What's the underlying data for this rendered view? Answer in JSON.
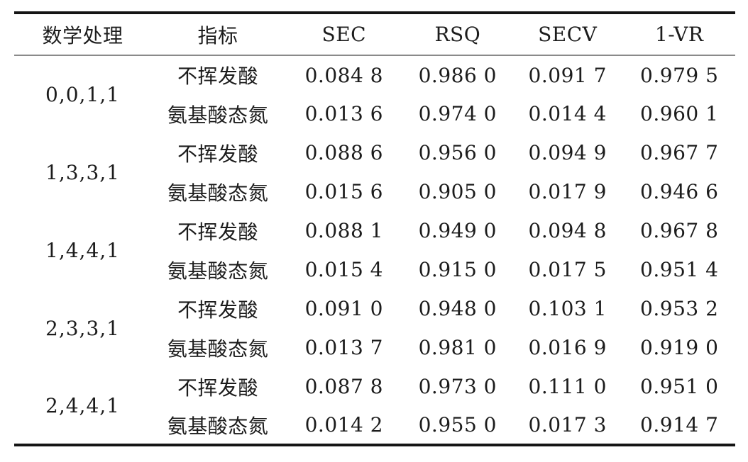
{
  "page": {
    "background": "#ffffff",
    "text_color": "#1c1c1c",
    "heavy_rule_color": "#141414",
    "light_rule_color": "#8a8a8a"
  },
  "table": {
    "headers": [
      "数学处理",
      "指标",
      "SEC",
      "RSQ",
      "SECV",
      "1-VR"
    ],
    "groups": [
      {
        "treatment": "0,0,1,1",
        "rows": [
          {
            "indicator": "不挥发酸",
            "sec": "0.084 8",
            "rsq": "0.986 0",
            "secv": "0.091 7",
            "vr": "0.979 5"
          },
          {
            "indicator": "氨基酸态氮",
            "sec": "0.013 6",
            "rsq": "0.974 0",
            "secv": "0.014 4",
            "vr": "0.960 1"
          }
        ]
      },
      {
        "treatment": "1,3,3,1",
        "rows": [
          {
            "indicator": "不挥发酸",
            "sec": "0.088 6",
            "rsq": "0.956 0",
            "secv": "0.094 9",
            "vr": "0.967 7"
          },
          {
            "indicator": "氨基酸态氮",
            "sec": "0.015 6",
            "rsq": "0.905 0",
            "secv": "0.017 9",
            "vr": "0.946 6"
          }
        ]
      },
      {
        "treatment": "1,4,4,1",
        "rows": [
          {
            "indicator": "不挥发酸",
            "sec": "0.088 1",
            "rsq": "0.949 0",
            "secv": "0.094 8",
            "vr": "0.967 8"
          },
          {
            "indicator": "氨基酸态氮",
            "sec": "0.015 4",
            "rsq": "0.915 0",
            "secv": "0.017 5",
            "vr": "0.951 4"
          }
        ]
      },
      {
        "treatment": "2,3,3,1",
        "rows": [
          {
            "indicator": "不挥发酸",
            "sec": "0.091 0",
            "rsq": "0.948 0",
            "secv": "0.103 1",
            "vr": "0.953 2"
          },
          {
            "indicator": "氨基酸态氮",
            "sec": "0.013 7",
            "rsq": "0.981 0",
            "secv": "0.016 9",
            "vr": "0.919 0"
          }
        ]
      },
      {
        "treatment": "2,4,4,1",
        "rows": [
          {
            "indicator": "不挥发酸",
            "sec": "0.087 8",
            "rsq": "0.973 0",
            "secv": "0.111 0",
            "vr": "0.951 0"
          },
          {
            "indicator": "氨基酸态氮",
            "sec": "0.014 2",
            "rsq": "0.955 0",
            "secv": "0.017 3",
            "vr": "0.914 7"
          }
        ]
      }
    ]
  },
  "chart_data": {
    "type": "table",
    "columns": [
      "数学处理",
      "指标",
      "SEC",
      "RSQ",
      "SECV",
      "1-VR"
    ],
    "rows": [
      [
        "0,0,1,1",
        "不挥发酸",
        "0.084 8",
        "0.986 0",
        "0.091 7",
        "0.979 5"
      ],
      [
        "0,0,1,1",
        "氨基酸态氮",
        "0.013 6",
        "0.974 0",
        "0.014 4",
        "0.960 1"
      ],
      [
        "1,3,3,1",
        "不挥发酸",
        "0.088 6",
        "0.956 0",
        "0.094 9",
        "0.967 7"
      ],
      [
        "1,3,3,1",
        "氨基酸态氮",
        "0.015 6",
        "0.905 0",
        "0.017 9",
        "0.946 6"
      ],
      [
        "1,4,4,1",
        "不挥发酸",
        "0.088 1",
        "0.949 0",
        "0.094 8",
        "0.967 8"
      ],
      [
        "1,4,4,1",
        "氨基酸态氮",
        "0.015 4",
        "0.915 0",
        "0.017 5",
        "0.951 4"
      ],
      [
        "2,3,3,1",
        "不挥发酸",
        "0.091 0",
        "0.948 0",
        "0.103 1",
        "0.953 2"
      ],
      [
        "2,3,3,1",
        "氨基酸态氮",
        "0.013 7",
        "0.981 0",
        "0.016 9",
        "0.919 0"
      ],
      [
        "2,4,4,1",
        "不挥发酸",
        "0.087 8",
        "0.973 0",
        "0.111 0",
        "0.951 0"
      ],
      [
        "2,4,4,1",
        "氨基酸态氮",
        "0.014 2",
        "0.955 0",
        "0.017 3",
        "0.914 7"
      ]
    ]
  }
}
